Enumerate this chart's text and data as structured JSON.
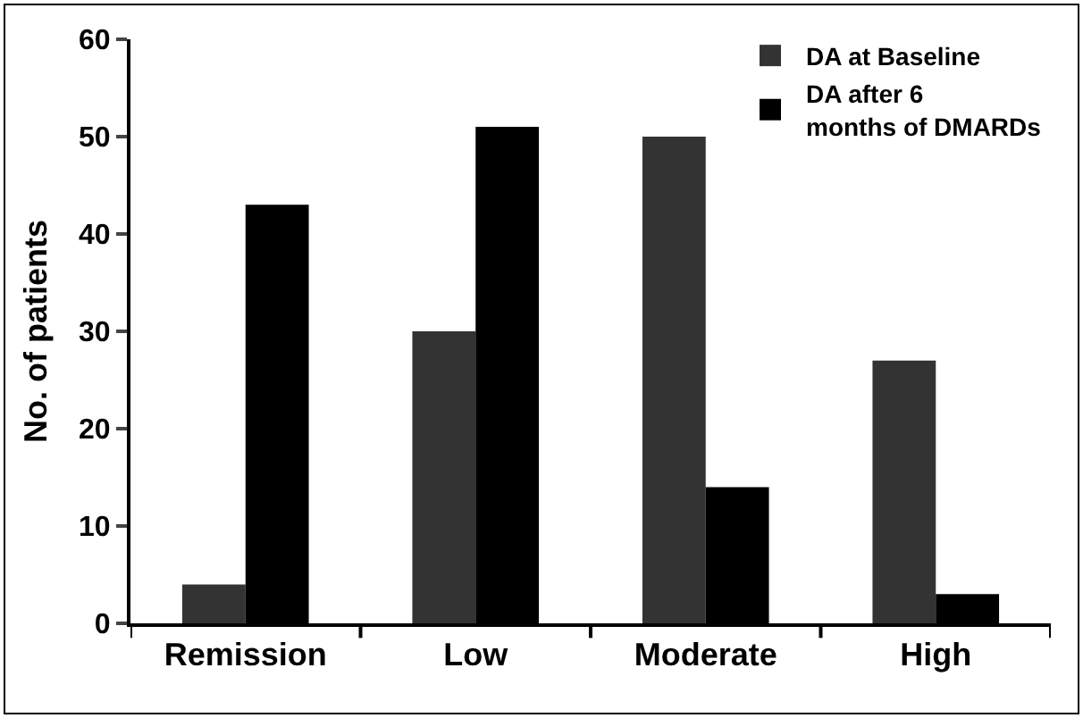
{
  "chart_data": {
    "type": "bar",
    "ylabel": "No. of patients",
    "categories": [
      "Remission",
      "Low",
      "Moderate",
      "High"
    ],
    "series": [
      {
        "name": "DA at Baseline",
        "color": "#333333",
        "values": [
          4,
          30,
          50,
          27
        ]
      },
      {
        "name": "DA after 6 months of DMARDs",
        "color": "#000000",
        "values": [
          43,
          51,
          14,
          3
        ]
      }
    ],
    "ylim": [
      0,
      60
    ],
    "yticks": [
      0,
      10,
      20,
      30,
      40,
      50,
      60
    ],
    "grid": false,
    "legend": "top right"
  }
}
